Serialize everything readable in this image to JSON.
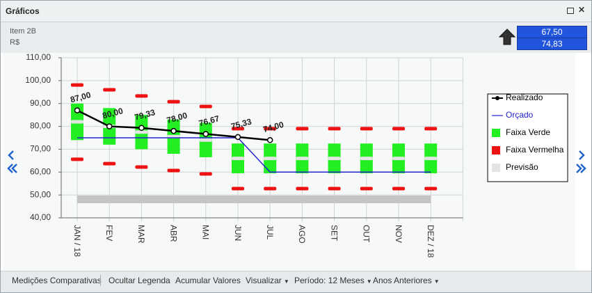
{
  "window": {
    "title": "Gráficos"
  },
  "header": {
    "item": "Item 2B",
    "unit": "R$",
    "values": [
      "67,50",
      "74,83"
    ]
  },
  "toolbar": [
    "Medições Comparativas",
    "Ocultar Legenda",
    "Acumular Valores",
    "Visualizar",
    "Período: 12 Meses",
    "Anos Anteriores"
  ],
  "chart_data": {
    "type": "line",
    "categories": [
      "JAN / 18",
      "FEV",
      "MAR",
      "ABR",
      "MAI",
      "JUN",
      "JUL",
      "AGO",
      "SET",
      "OUT",
      "NOV",
      "DEZ / 18"
    ],
    "ylim": [
      40,
      110
    ],
    "yticks": [
      {
        "value": 40,
        "label": "40,00"
      },
      {
        "value": 50,
        "label": "50,00"
      },
      {
        "value": 60,
        "label": "60,00"
      },
      {
        "value": 70,
        "label": "70,00"
      },
      {
        "value": 80,
        "label": "80,00"
      },
      {
        "value": 90,
        "label": "90,00"
      },
      {
        "value": 100,
        "label": "100,00"
      },
      {
        "value": 110,
        "label": "110,00"
      }
    ],
    "grid": true,
    "legend": "right",
    "series": [
      {
        "name": "Realizado",
        "type": "line",
        "color": "#000000",
        "values": [
          87,
          80,
          79.33,
          78,
          76.67,
          75.33,
          74,
          null,
          null,
          null,
          null,
          null
        ],
        "value_labels": [
          "87,00",
          "80,00",
          "79,33",
          "78,00",
          "76,67",
          "75,33",
          "74,00",
          null,
          null,
          null,
          null,
          null
        ]
      },
      {
        "name": "Orçado",
        "type": "line",
        "color": "#2222cc",
        "values": [
          75,
          75,
          75,
          75,
          75,
          75,
          60,
          60,
          60,
          60,
          60,
          60
        ]
      },
      {
        "name": "Faixa Verde",
        "type": "range",
        "color": "#22ee22",
        "low": [
          74,
          72,
          70,
          68,
          66.5,
          59.5,
          59.5,
          59.5,
          59.5,
          59.5,
          59.5,
          59.5
        ],
        "high": [
          90,
          88,
          85,
          83,
          81.5,
          72.5,
          72.5,
          72.5,
          72.5,
          72.5,
          72.5,
          72.5
        ]
      },
      {
        "name": "Faixa Vermelha",
        "type": "marks",
        "color": "#ee1111",
        "low": [
          65.6,
          63.7,
          62.2,
          60.7,
          59.2,
          52.8,
          52.8,
          52.8,
          52.8,
          52.8,
          52.8,
          52.8
        ],
        "high": [
          98.1,
          96,
          93.3,
          90.8,
          88.7,
          79,
          79,
          79,
          79,
          79,
          79,
          79
        ]
      },
      {
        "name": "Previsão",
        "type": "marks",
        "color": "#e4e4e4",
        "values": [
          82,
          80,
          77.5,
          75.5,
          74,
          66,
          66,
          66,
          66,
          66,
          66,
          66
        ]
      }
    ]
  }
}
